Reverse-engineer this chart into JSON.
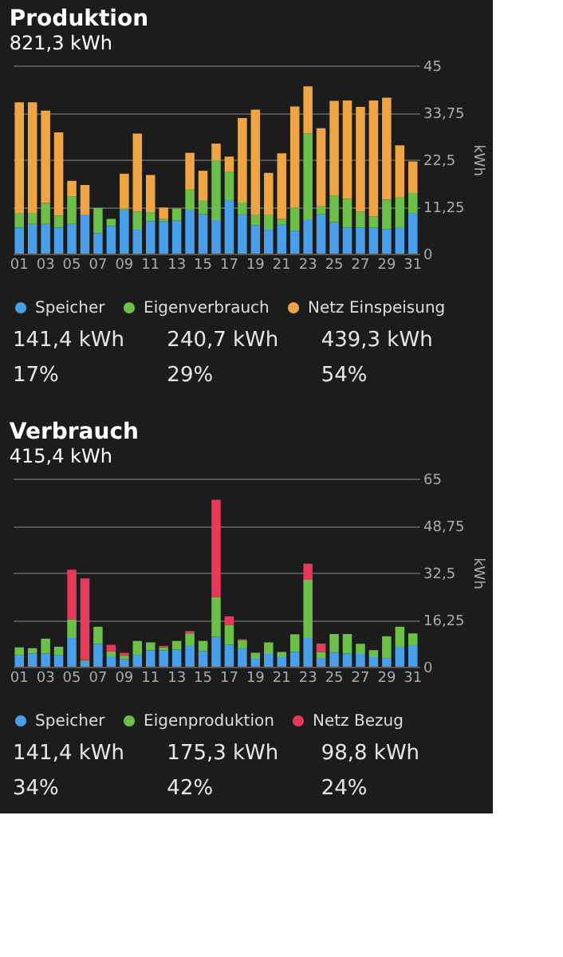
{
  "chart_data": [
    {
      "type": "bar",
      "title": "Produktion",
      "subtitle": "821,3 kWh",
      "ylabel": "kWh",
      "stacked": true,
      "grid": "y",
      "legend": "bottom",
      "categories": [
        "01",
        null,
        "03",
        null,
        "05",
        null,
        "07",
        null,
        "09",
        null,
        "11",
        null,
        "13",
        null,
        "15",
        null,
        "17",
        null,
        "19",
        null,
        "21",
        null,
        "23",
        null,
        "25",
        null,
        "27",
        null,
        "29",
        null,
        "31"
      ],
      "ylim": [
        0,
        45
      ],
      "yticks": [
        0,
        {
          "value": 11.25,
          "label": "11,25"
        },
        {
          "value": 22.5,
          "label": "22,5"
        },
        {
          "value": 33.75,
          "label": "33,75"
        },
        45
      ],
      "series": [
        {
          "name": "Speicher",
          "color": "#4a9fea",
          "values": [
            6.2,
            7.1,
            7.1,
            6.2,
            7.1,
            9.2,
            4.9,
            6.6,
            10.5,
            5.7,
            7.7,
            7.7,
            7.9,
            10.5,
            9.4,
            8.0,
            12.8,
            9.2,
            6.8,
            5.7,
            6.9,
            5.4,
            8.2,
            9.4,
            7.5,
            6.2,
            6.2,
            6.2,
            5.8,
            6.3,
            9.6
          ]
        },
        {
          "name": "Eigenverbrauch",
          "color": "#6cc04a",
          "values": [
            3.4,
            2.5,
            5.0,
            2.9,
            6.6,
            0,
            6.0,
            1.7,
            0.3,
            4.3,
            2.2,
            0.6,
            2.9,
            4.8,
            3.2,
            14.2,
            6.7,
            3.0,
            2.4,
            3.5,
            1.4,
            5.6,
            20.5,
            1.9,
            6.4,
            6.9,
            3.8,
            2.7,
            7.1,
            7.1,
            4.9
          ]
        },
        {
          "name": "Netz Einspeisung",
          "color": "#f0a545",
          "values": [
            26.6,
            26.6,
            22.1,
            19.9,
            3.7,
            7.2,
            0,
            0,
            8.3,
            18.7,
            8.9,
            2.7,
            0,
            8.8,
            7.2,
            4.1,
            3.7,
            20.2,
            25.2,
            10.1,
            15.7,
            24.2,
            11.3,
            18.7,
            22.6,
            23.5,
            25.1,
            27.7,
            24.4,
            12.5,
            7.5
          ]
        }
      ],
      "annotations": [
        "141,4 kWh",
        "240,7 kWh",
        "439,3 kWh",
        "17%",
        "29%",
        "54%"
      ]
    },
    {
      "type": "bar",
      "title": "Verbrauch",
      "subtitle": "415,4 kWh",
      "ylabel": "kWh",
      "stacked": true,
      "grid": "y",
      "legend": "bottom",
      "categories": [
        "01",
        null,
        "03",
        null,
        "05",
        null,
        "07",
        null,
        "09",
        null,
        "11",
        null,
        "13",
        null,
        "15",
        null,
        "17",
        null,
        "19",
        null,
        "21",
        null,
        "23",
        null,
        "25",
        null,
        "27",
        null,
        "29",
        null,
        "31"
      ],
      "ylim": [
        0,
        65
      ],
      "yticks": [
        0,
        {
          "value": 16.25,
          "label": "16,25"
        },
        {
          "value": 32.5,
          "label": "32,5"
        },
        {
          "value": 48.75,
          "label": "48,75"
        },
        65
      ],
      "series": [
        {
          "name": "Speicher",
          "color": "#4a9fea",
          "values": [
            4.1,
            4.6,
            4.6,
            4.1,
            9.9,
            2.0,
            7.9,
            3.6,
            2.6,
            4.1,
            5.7,
            5.7,
            5.9,
            7.2,
            5.4,
            10.3,
            7.6,
            6.1,
            3.0,
            4.4,
            3.3,
            5.1,
            9.9,
            3.0,
            4.9,
            4.6,
            4.4,
            3.3,
            3.0,
            6.9,
            7.2
          ]
        },
        {
          "name": "Eigenproduktion",
          "color": "#6cc04a",
          "values": [
            2.6,
            1.8,
            5.1,
            2.8,
            6.5,
            0.3,
            5.9,
            1.8,
            1.2,
            4.8,
            2.7,
            1.0,
            3.0,
            4.3,
            3.5,
            13.8,
            6.8,
            3.1,
            1.8,
            4.0,
            1.8,
            6.1,
            20.1,
            2.1,
            6.4,
            6.7,
            3.5,
            2.4,
            7.5,
            6.9,
            4.3
          ]
        },
        {
          "name": "Netz Bezug",
          "color": "#e8395a",
          "values": [
            0,
            0,
            0,
            0,
            17.1,
            28.2,
            0,
            2.2,
            1.0,
            0,
            0,
            0.5,
            0,
            0.8,
            0,
            33.5,
            3.0,
            0.3,
            0,
            0,
            0,
            0,
            5.6,
            2.9,
            0,
            0,
            0,
            0,
            0,
            0,
            0
          ]
        }
      ],
      "annotations": [
        "141,4 kWh",
        "175,3 kWh",
        "98,8 kWh",
        "34%",
        "42%",
        "24%"
      ]
    }
  ]
}
